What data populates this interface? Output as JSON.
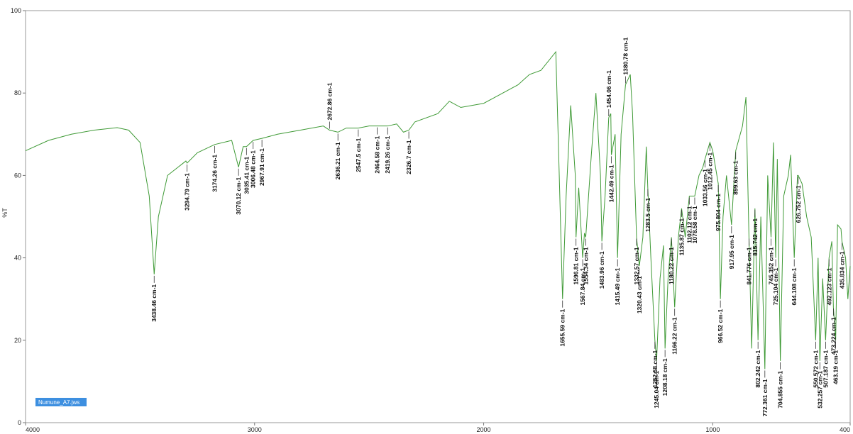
{
  "chart_data": {
    "type": "line",
    "ylabel": "%T",
    "xlim": [
      4000,
      400
    ],
    "ylim": [
      0,
      100
    ],
    "xticks": [
      4000,
      3000,
      2000,
      1000,
      400
    ],
    "yticks": [
      0,
      20,
      40,
      60,
      80,
      100
    ],
    "x": [
      4000,
      3900,
      3800,
      3700,
      3600,
      3550,
      3500,
      3460,
      3438.46,
      3420,
      3380,
      3300,
      3294.79,
      3250,
      3174.26,
      3100,
      3070.12,
      3050,
      3035.41,
      3006.48,
      2967.91,
      2900,
      2800,
      2700,
      2672.86,
      2636.21,
      2600,
      2547.5,
      2500,
      2464.58,
      2419.26,
      2380,
      2350,
      2326.7,
      2300,
      2200,
      2150,
      2100,
      2000,
      1950,
      1900,
      1850,
      1800,
      1750,
      1685,
      1670,
      1655.59,
      1640,
      1620,
      1600,
      1596.81,
      1585,
      1567.84,
      1560,
      1554.34,
      1530,
      1510,
      1490,
      1483.96,
      1470,
      1454.06,
      1445,
      1442.49,
      1426.05,
      1415.49,
      1400,
      1380.78,
      1360,
      1350,
      1332.57,
      1320.43,
      1305,
      1290,
      1283.5,
      1270,
      1252.58,
      1245.04,
      1230,
      1215,
      1208.18,
      1195,
      1180.22,
      1166.22,
      1150,
      1135.87,
      1120,
      1102.12,
      1078.58,
      1060,
      1043,
      1033.56,
      1012.45,
      1000,
      975.804,
      966.52,
      955,
      940,
      917.95,
      899.63,
      870,
      855,
      841.776,
      830,
      815.742,
      802.242,
      790,
      772.361,
      760,
      745.352,
      735,
      725.104,
      718,
      704.855,
      690,
      670,
      660,
      644.108,
      630,
      626.752,
      610,
      590,
      570,
      550.572,
      540,
      532.257,
      520,
      507.187,
      492.123,
      480,
      473.224,
      463.19,
      455,
      440,
      435.834,
      420,
      410,
      400
    ],
    "series": [
      {
        "name": "Numune_A7.jws",
        "color": "#3f9a36",
        "values": [
          66,
          68.5,
          70,
          71,
          71.6,
          71,
          68,
          55,
          36,
          50,
          60,
          63.5,
          63,
          65.5,
          67.5,
          68.5,
          62,
          67,
          67,
          68.5,
          69,
          70,
          71,
          72,
          71,
          70.5,
          71.5,
          71.5,
          72,
          72,
          72,
          72.5,
          70.5,
          71,
          73,
          75,
          78,
          76.5,
          77.5,
          79,
          80.5,
          82,
          84.5,
          85.5,
          90,
          60,
          30,
          55,
          77,
          60,
          45,
          57,
          40,
          46,
          45,
          65,
          80,
          60,
          44,
          55,
          74,
          75,
          65,
          70,
          40,
          70,
          82,
          84.5,
          75,
          45,
          38,
          45,
          67,
          57,
          40,
          20,
          15,
          35,
          43,
          18,
          35,
          45,
          28,
          45,
          52,
          45,
          55,
          55,
          60,
          62,
          64,
          68,
          66,
          58,
          30,
          50,
          60,
          48,
          66,
          72,
          79,
          45,
          18,
          52,
          20,
          50,
          13,
          60,
          45,
          68,
          40,
          64,
          15,
          55,
          60,
          65,
          40,
          60,
          60,
          58,
          50,
          45,
          20,
          40,
          15,
          35,
          20,
          40,
          44,
          28,
          20,
          48,
          47,
          44,
          40,
          30,
          38
        ]
      }
    ],
    "annotations": [
      {
        "x": 3438.46,
        "label": "3438.46 cm-1"
      },
      {
        "x": 3294.79,
        "label": "3294.79 cm-1"
      },
      {
        "x": 3174.26,
        "label": "3174.26 cm-1"
      },
      {
        "x": 3070.12,
        "label": "3070.12 cm-1"
      },
      {
        "x": 3035.41,
        "label": "3035.41 cm-1"
      },
      {
        "x": 3006.48,
        "label": "3006.48 cm-1"
      },
      {
        "x": 2967.91,
        "label": "2967.91 cm-1"
      },
      {
        "x": 2672.86,
        "label": "2672.86 cm-1",
        "above": true
      },
      {
        "x": 2636.21,
        "label": "2636.21 cm-1"
      },
      {
        "x": 2547.5,
        "label": "2547.5 cm-1"
      },
      {
        "x": 2464.58,
        "label": "2464.58 cm-1"
      },
      {
        "x": 2419.26,
        "label": "2419.26 cm-1"
      },
      {
        "x": 2326.7,
        "label": "2326.7 cm-1"
      },
      {
        "x": 1655.59,
        "label": "1655.59 cm-1"
      },
      {
        "x": 1596.81,
        "label": "1596.81 cm-1"
      },
      {
        "x": 1567.84,
        "label": "1567.84 cm-1"
      },
      {
        "x": 1554.34,
        "label": "1554.34 cm-1"
      },
      {
        "x": 1483.96,
        "label": "1483.96 cm-1"
      },
      {
        "x": 1454.06,
        "label": "1454.06 cm-1",
        "above": true
      },
      {
        "x": 1442.49,
        "label": "1442.49 cm-1"
      },
      {
        "x": 1415.49,
        "label": "1415.49 cm-1"
      },
      {
        "x": 1380.78,
        "label": "1380.78 cm-1",
        "above": true
      },
      {
        "x": 1332.57,
        "label": "1332.57 cm-1"
      },
      {
        "x": 1320.43,
        "label": "1320.43 cm-1"
      },
      {
        "x": 1283.5,
        "label": "1283.5 cm-1"
      },
      {
        "x": 1252.58,
        "label": "1252.58 cm-1"
      },
      {
        "x": 1245.04,
        "label": "1245.04 cm-1"
      },
      {
        "x": 1208.18,
        "label": "1208.18 cm-1"
      },
      {
        "x": 1180.22,
        "label": "1180.22 cm-1"
      },
      {
        "x": 1166.22,
        "label": "1166.22 cm-1"
      },
      {
        "x": 1135.87,
        "label": "1135.87 cm-1"
      },
      {
        "x": 1102.12,
        "label": "1102.12 cm-1"
      },
      {
        "x": 1078.58,
        "label": "1078.58 cm-1"
      },
      {
        "x": 1033.56,
        "label": "1033.56 cm-1"
      },
      {
        "x": 1012.45,
        "label": "1012.45 cm-1"
      },
      {
        "x": 975.804,
        "label": "975.804 cm-1"
      },
      {
        "x": 966.52,
        "label": "966.52 cm-1"
      },
      {
        "x": 917.95,
        "label": "917.95 cm-1"
      },
      {
        "x": 899.63,
        "label": "899.63 cm-1"
      },
      {
        "x": 841.776,
        "label": "841.776 cm-1"
      },
      {
        "x": 815.742,
        "label": "815.742 cm-1"
      },
      {
        "x": 802.242,
        "label": "802.242 cm-1"
      },
      {
        "x": 772.361,
        "label": "772.361 cm-1"
      },
      {
        "x": 745.352,
        "label": "745.352 cm-1"
      },
      {
        "x": 725.104,
        "label": "725.104 cm-1"
      },
      {
        "x": 704.855,
        "label": "704.855 cm-1"
      },
      {
        "x": 644.108,
        "label": "644.108 cm-1"
      },
      {
        "x": 626.752,
        "label": "626.752 cm-1"
      },
      {
        "x": 550.572,
        "label": "550.572 cm-1"
      },
      {
        "x": 532.257,
        "label": "532.257 cm-1"
      },
      {
        "x": 507.187,
        "label": "507.187 cm-1"
      },
      {
        "x": 492.123,
        "label": "492.123 cm-1"
      },
      {
        "x": 473.224,
        "label": "473.224 cm-1"
      },
      {
        "x": 463.19,
        "label": "463.19 cm-1"
      },
      {
        "x": 435.834,
        "label": "435.834 cm-1"
      }
    ]
  }
}
